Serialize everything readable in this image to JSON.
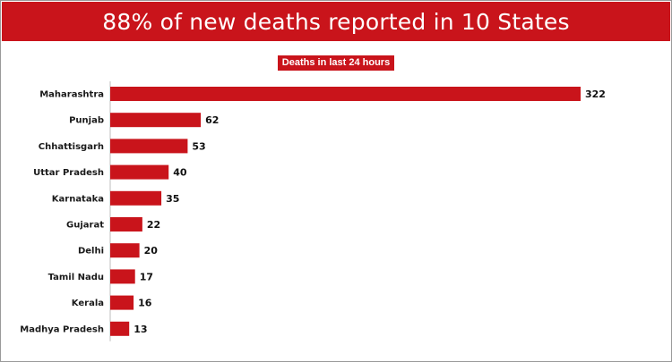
{
  "title": "88% of new deaths reported in 10 States",
  "colors": {
    "accent": "#c9141b",
    "bar": "#c9141b"
  },
  "chart_data": {
    "type": "bar",
    "orientation": "horizontal",
    "subtitle": "Deaths in last 24 hours",
    "categories": [
      "Maharashtra",
      "Punjab",
      "Chhattisgarh",
      "Uttar Pradesh",
      "Karnataka",
      "Gujarat",
      "Delhi",
      "Tamil Nadu",
      "Kerala",
      "Madhya Pradesh"
    ],
    "values": [
      322,
      62,
      53,
      40,
      35,
      22,
      20,
      17,
      16,
      13
    ],
    "data_labels": [
      "322",
      "62",
      "53",
      "40",
      "35",
      "22",
      "20",
      "17",
      "16",
      "13"
    ],
    "xlim": [
      0,
      322
    ],
    "grid": false,
    "legend": "none"
  }
}
